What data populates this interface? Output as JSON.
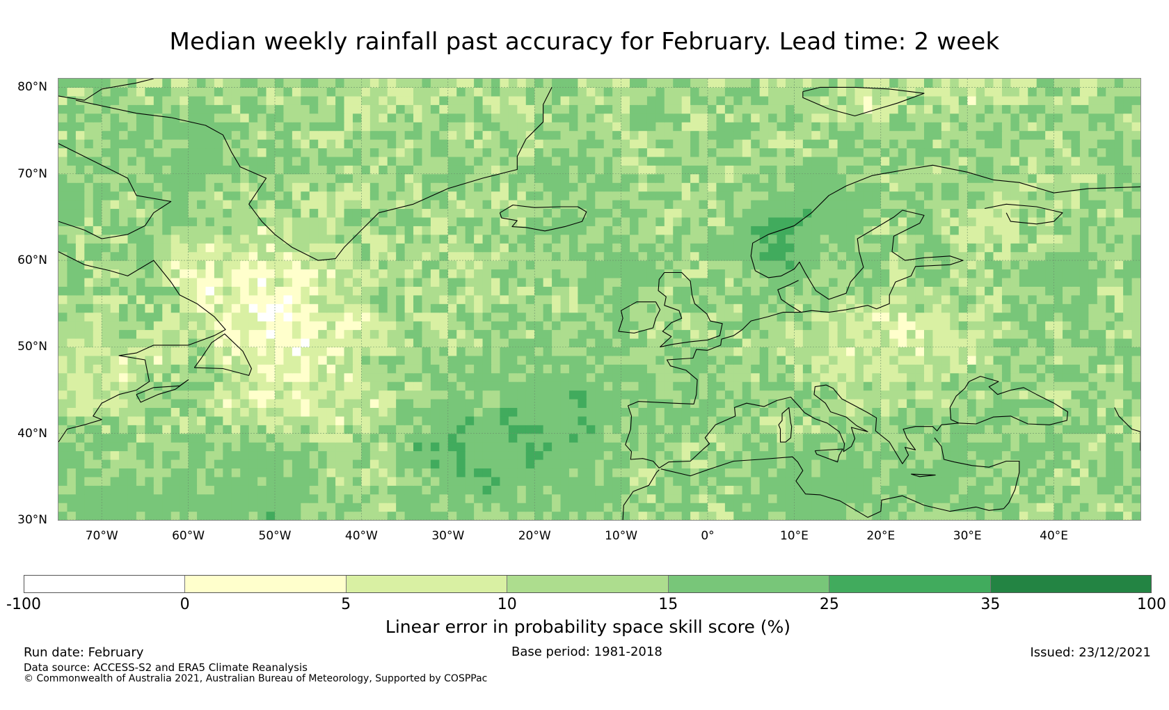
{
  "title": "Median weekly rainfall past accuracy for February. Lead time: 2 week",
  "map": {
    "lon_range": [
      -75,
      50
    ],
    "lat_range": [
      30,
      81
    ],
    "grid_step_deg": 1,
    "lat_labels": [
      "80°N",
      "70°N",
      "60°N",
      "50°N",
      "40°N",
      "30°N"
    ],
    "lat_values": [
      80,
      70,
      60,
      50,
      40,
      30
    ],
    "lon_labels": [
      "70°W",
      "60°W",
      "50°W",
      "40°W",
      "30°W",
      "20°W",
      "10°W",
      "0°",
      "10°E",
      "20°E",
      "30°E",
      "40°E"
    ],
    "lon_values": [
      -70,
      -60,
      -50,
      -40,
      -30,
      -20,
      -10,
      0,
      10,
      20,
      30,
      40
    ],
    "coastline_color": "#000000",
    "gridline_color": "#6a8f6a"
  },
  "colorbar": {
    "label": "Linear error in probability space skill score (%)",
    "tick_labels": [
      "-100",
      "0",
      "5",
      "10",
      "15",
      "25",
      "35",
      "100"
    ],
    "bounds": [
      -100,
      0,
      5,
      10,
      15,
      25,
      35,
      100
    ],
    "colors": [
      "#ffffff",
      "#ffffcc",
      "#d9f0a3",
      "#addd8e",
      "#78c679",
      "#41ab5d",
      "#238443"
    ]
  },
  "footer": {
    "run_date": "Run date: February",
    "base_period": "Base period: 1981-2018",
    "issued": "Issued: 23/12/2021",
    "data_source": "Data source: ACCESS-S2 and ERA5 Climate Reanalysis",
    "copyright": "© Commonwealth of Australia 2021, Australian Bureau of Meteorology, Supported by COSPPac"
  }
}
